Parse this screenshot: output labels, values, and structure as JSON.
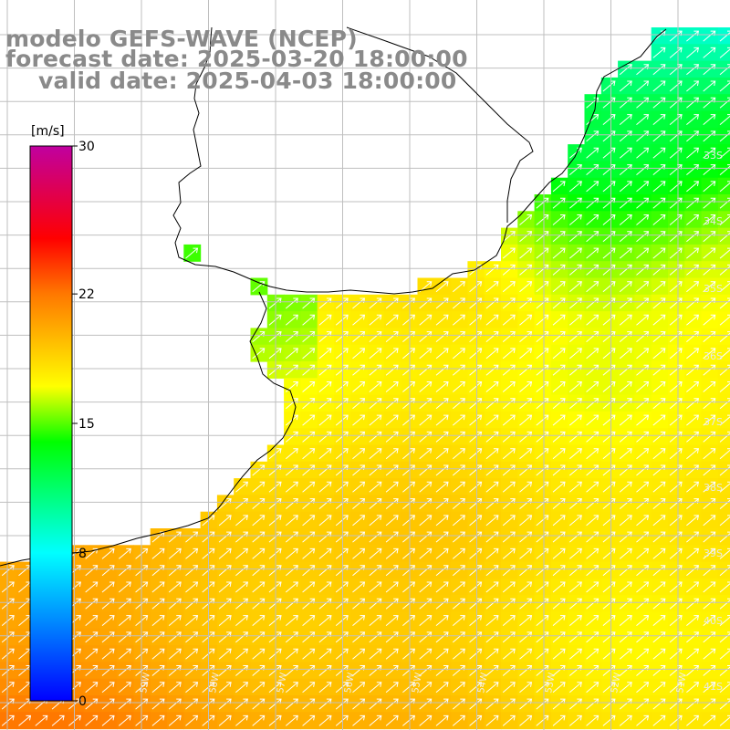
{
  "title": {
    "model": "modelo GEFS-WAVE (NCEP)",
    "forecast": "forecast date: 2025-03-20 18:00:00",
    "valid": "valid date: 2025-04-03 18:00:00"
  },
  "colorbar": {
    "unit": "[m/s]",
    "ticks": [
      "30",
      "22",
      "15",
      "8",
      "0"
    ],
    "tick_values": [
      30,
      22,
      15,
      8,
      0
    ],
    "min": 0,
    "max": 30,
    "stops": [
      {
        "v": 0,
        "color": "#0000ff"
      },
      {
        "v": 8,
        "color": "#00ffff"
      },
      {
        "v": 14,
        "color": "#00ff00"
      },
      {
        "v": 17,
        "color": "#ffff00"
      },
      {
        "v": 22,
        "color": "#ff7800"
      },
      {
        "v": 25,
        "color": "#ff0000"
      },
      {
        "v": 30,
        "color": "#c000a0"
      }
    ]
  },
  "lat_labels": [
    "33S",
    "34S",
    "35S",
    "36S",
    "37S",
    "38S",
    "39S",
    "40S",
    "41S"
  ],
  "lon_labels": [
    "59W",
    "58W",
    "57W",
    "56W",
    "55W",
    "54W",
    "53W",
    "52W",
    "51W"
  ],
  "wind_arrow_direction": "towards-northeast",
  "colors": {
    "land": "#ffffff",
    "grid": "#bfbfbf",
    "coast": "#000000",
    "arrow": "#ffffff",
    "title": "#8a8a8a"
  }
}
